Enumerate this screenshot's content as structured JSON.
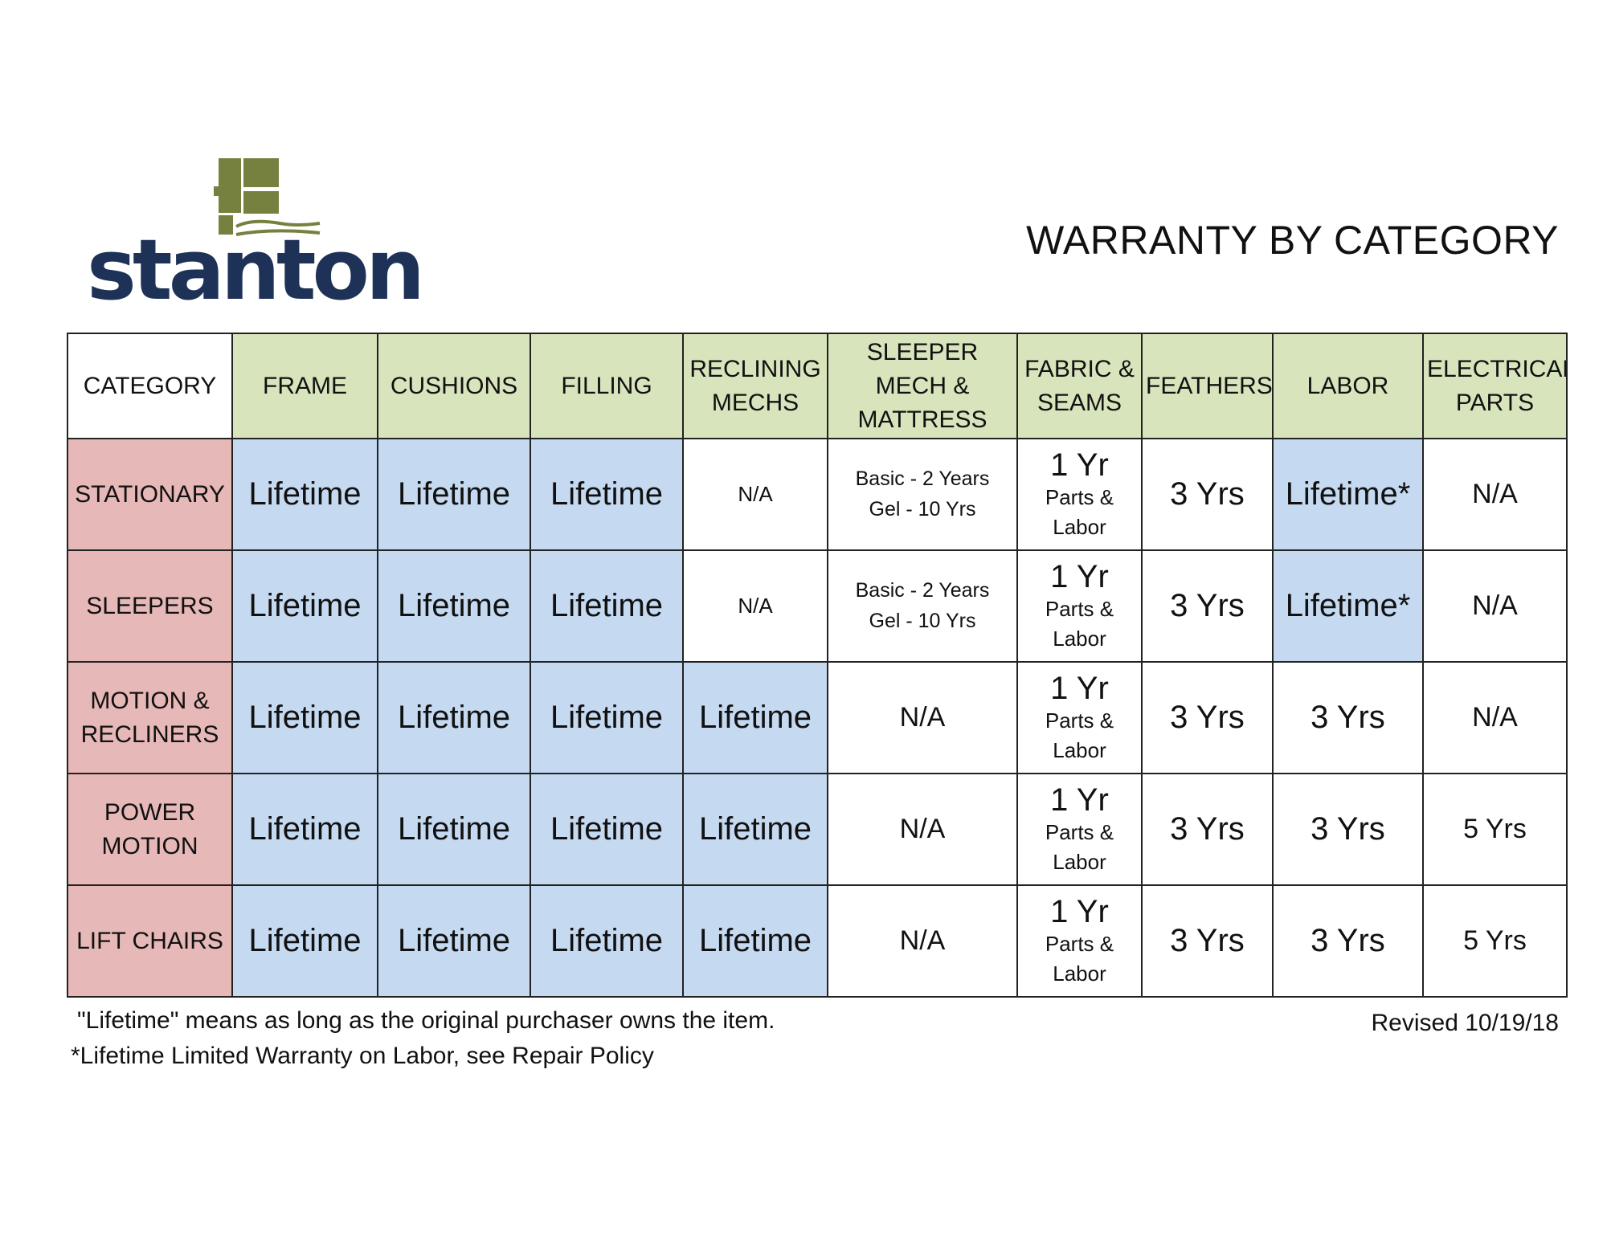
{
  "brand": {
    "name": "stanton",
    "primary_color": "#1e3258",
    "mark_color": "#76803f"
  },
  "title": "WARRANTY BY CATEGORY",
  "headers": [
    "CATEGORY",
    "FRAME",
    "CUSHIONS",
    "FILLING",
    "RECLINING MECHS",
    "SLEEPER MECH & MATTRESS",
    "FABRIC & SEAMS",
    "FEATHERS",
    "LABOR",
    "ELECTRICAL PARTS"
  ],
  "rows": [
    {
      "category": "STATIONARY",
      "frame": "Lifetime",
      "cushions": "Lifetime",
      "filling": "Lifetime",
      "reclining": "N/A",
      "sleeper": [
        "Basic - 2 Years",
        "Gel - 10 Yrs"
      ],
      "fabric": {
        "main": "1 Yr",
        "sub": "Parts & Labor"
      },
      "feathers": "3 Yrs",
      "labor": "Lifetime*",
      "electrical": "N/A"
    },
    {
      "category": "SLEEPERS",
      "frame": "Lifetime",
      "cushions": "Lifetime",
      "filling": "Lifetime",
      "reclining": "N/A",
      "sleeper": [
        "Basic - 2 Years",
        "Gel - 10 Yrs"
      ],
      "fabric": {
        "main": "1 Yr",
        "sub": "Parts & Labor"
      },
      "feathers": "3 Yrs",
      "labor": "Lifetime*",
      "electrical": "N/A"
    },
    {
      "category": "MOTION & RECLINERS",
      "frame": "Lifetime",
      "cushions": "Lifetime",
      "filling": "Lifetime",
      "reclining": "Lifetime",
      "sleeper": "N/A",
      "fabric": {
        "main": "1 Yr",
        "sub": "Parts & Labor"
      },
      "feathers": "3 Yrs",
      "labor": "3 Yrs",
      "electrical": "N/A"
    },
    {
      "category": "POWER MOTION",
      "frame": "Lifetime",
      "cushions": "Lifetime",
      "filling": "Lifetime",
      "reclining": "Lifetime",
      "sleeper": "N/A",
      "fabric": {
        "main": "1 Yr",
        "sub": "Parts & Labor"
      },
      "feathers": "3 Yrs",
      "labor": "3 Yrs",
      "electrical": "5 Yrs"
    },
    {
      "category": "LIFT CHAIRS",
      "frame": "Lifetime",
      "cushions": "Lifetime",
      "filling": "Lifetime",
      "reclining": "Lifetime",
      "sleeper": "N/A",
      "fabric": {
        "main": "1 Yr",
        "sub": "Parts & Labor"
      },
      "feathers": "3 Yrs",
      "labor": "3 Yrs",
      "electrical": "5 Yrs"
    }
  ],
  "notes": [
    "\"Lifetime\" means as long as the original purchaser owns the item.",
    "*Lifetime Limited Warranty on Labor, see Repair Policy"
  ],
  "revised": "Revised 10/19/18",
  "colors": {
    "header_green": "#d8e4bc",
    "category_pink": "#e6b8b7",
    "lifetime_blue": "#c5d9f1"
  }
}
